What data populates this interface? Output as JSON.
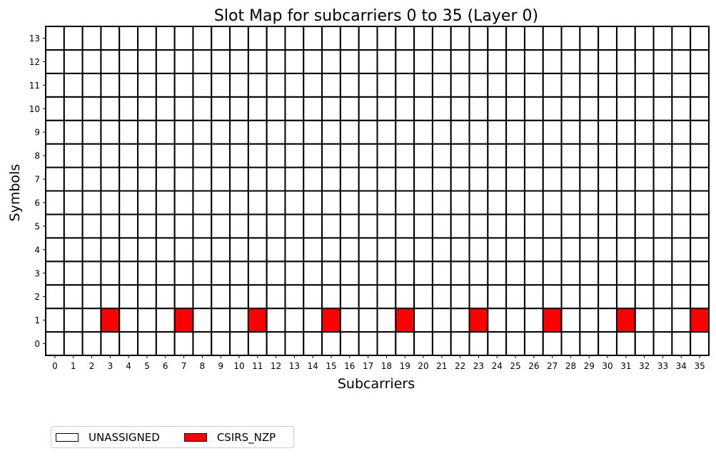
{
  "chart_data": {
    "type": "heatmap",
    "title": "Slot Map for subcarriers 0 to 35 (Layer 0)",
    "xlabel": "Subcarriers",
    "ylabel": "Symbols",
    "x_ticks": [
      "0",
      "1",
      "2",
      "3",
      "4",
      "5",
      "6",
      "7",
      "8",
      "9",
      "10",
      "11",
      "12",
      "13",
      "14",
      "15",
      "16",
      "17",
      "18",
      "19",
      "20",
      "21",
      "22",
      "23",
      "24",
      "25",
      "26",
      "27",
      "28",
      "29",
      "30",
      "31",
      "32",
      "33",
      "34",
      "35"
    ],
    "y_ticks": [
      "0",
      "1",
      "2",
      "3",
      "4",
      "5",
      "6",
      "7",
      "8",
      "9",
      "10",
      "11",
      "12",
      "13"
    ],
    "xlim": [
      0,
      35
    ],
    "ylim": [
      0,
      13
    ],
    "grid": true,
    "legend_position": "bottom-left",
    "categories": [
      {
        "name": "UNASSIGNED",
        "color": "#ffffff"
      },
      {
        "name": "CSIRS_NZP",
        "color": "#ff0000"
      }
    ],
    "default_category": "UNASSIGNED",
    "cells": [
      {
        "subcarrier": 3,
        "symbol": 1,
        "category": "CSIRS_NZP"
      },
      {
        "subcarrier": 7,
        "symbol": 1,
        "category": "CSIRS_NZP"
      },
      {
        "subcarrier": 11,
        "symbol": 1,
        "category": "CSIRS_NZP"
      },
      {
        "subcarrier": 15,
        "symbol": 1,
        "category": "CSIRS_NZP"
      },
      {
        "subcarrier": 19,
        "symbol": 1,
        "category": "CSIRS_NZP"
      },
      {
        "subcarrier": 23,
        "symbol": 1,
        "category": "CSIRS_NZP"
      },
      {
        "subcarrier": 27,
        "symbol": 1,
        "category": "CSIRS_NZP"
      },
      {
        "subcarrier": 31,
        "symbol": 1,
        "category": "CSIRS_NZP"
      },
      {
        "subcarrier": 35,
        "symbol": 1,
        "category": "CSIRS_NZP"
      }
    ]
  }
}
